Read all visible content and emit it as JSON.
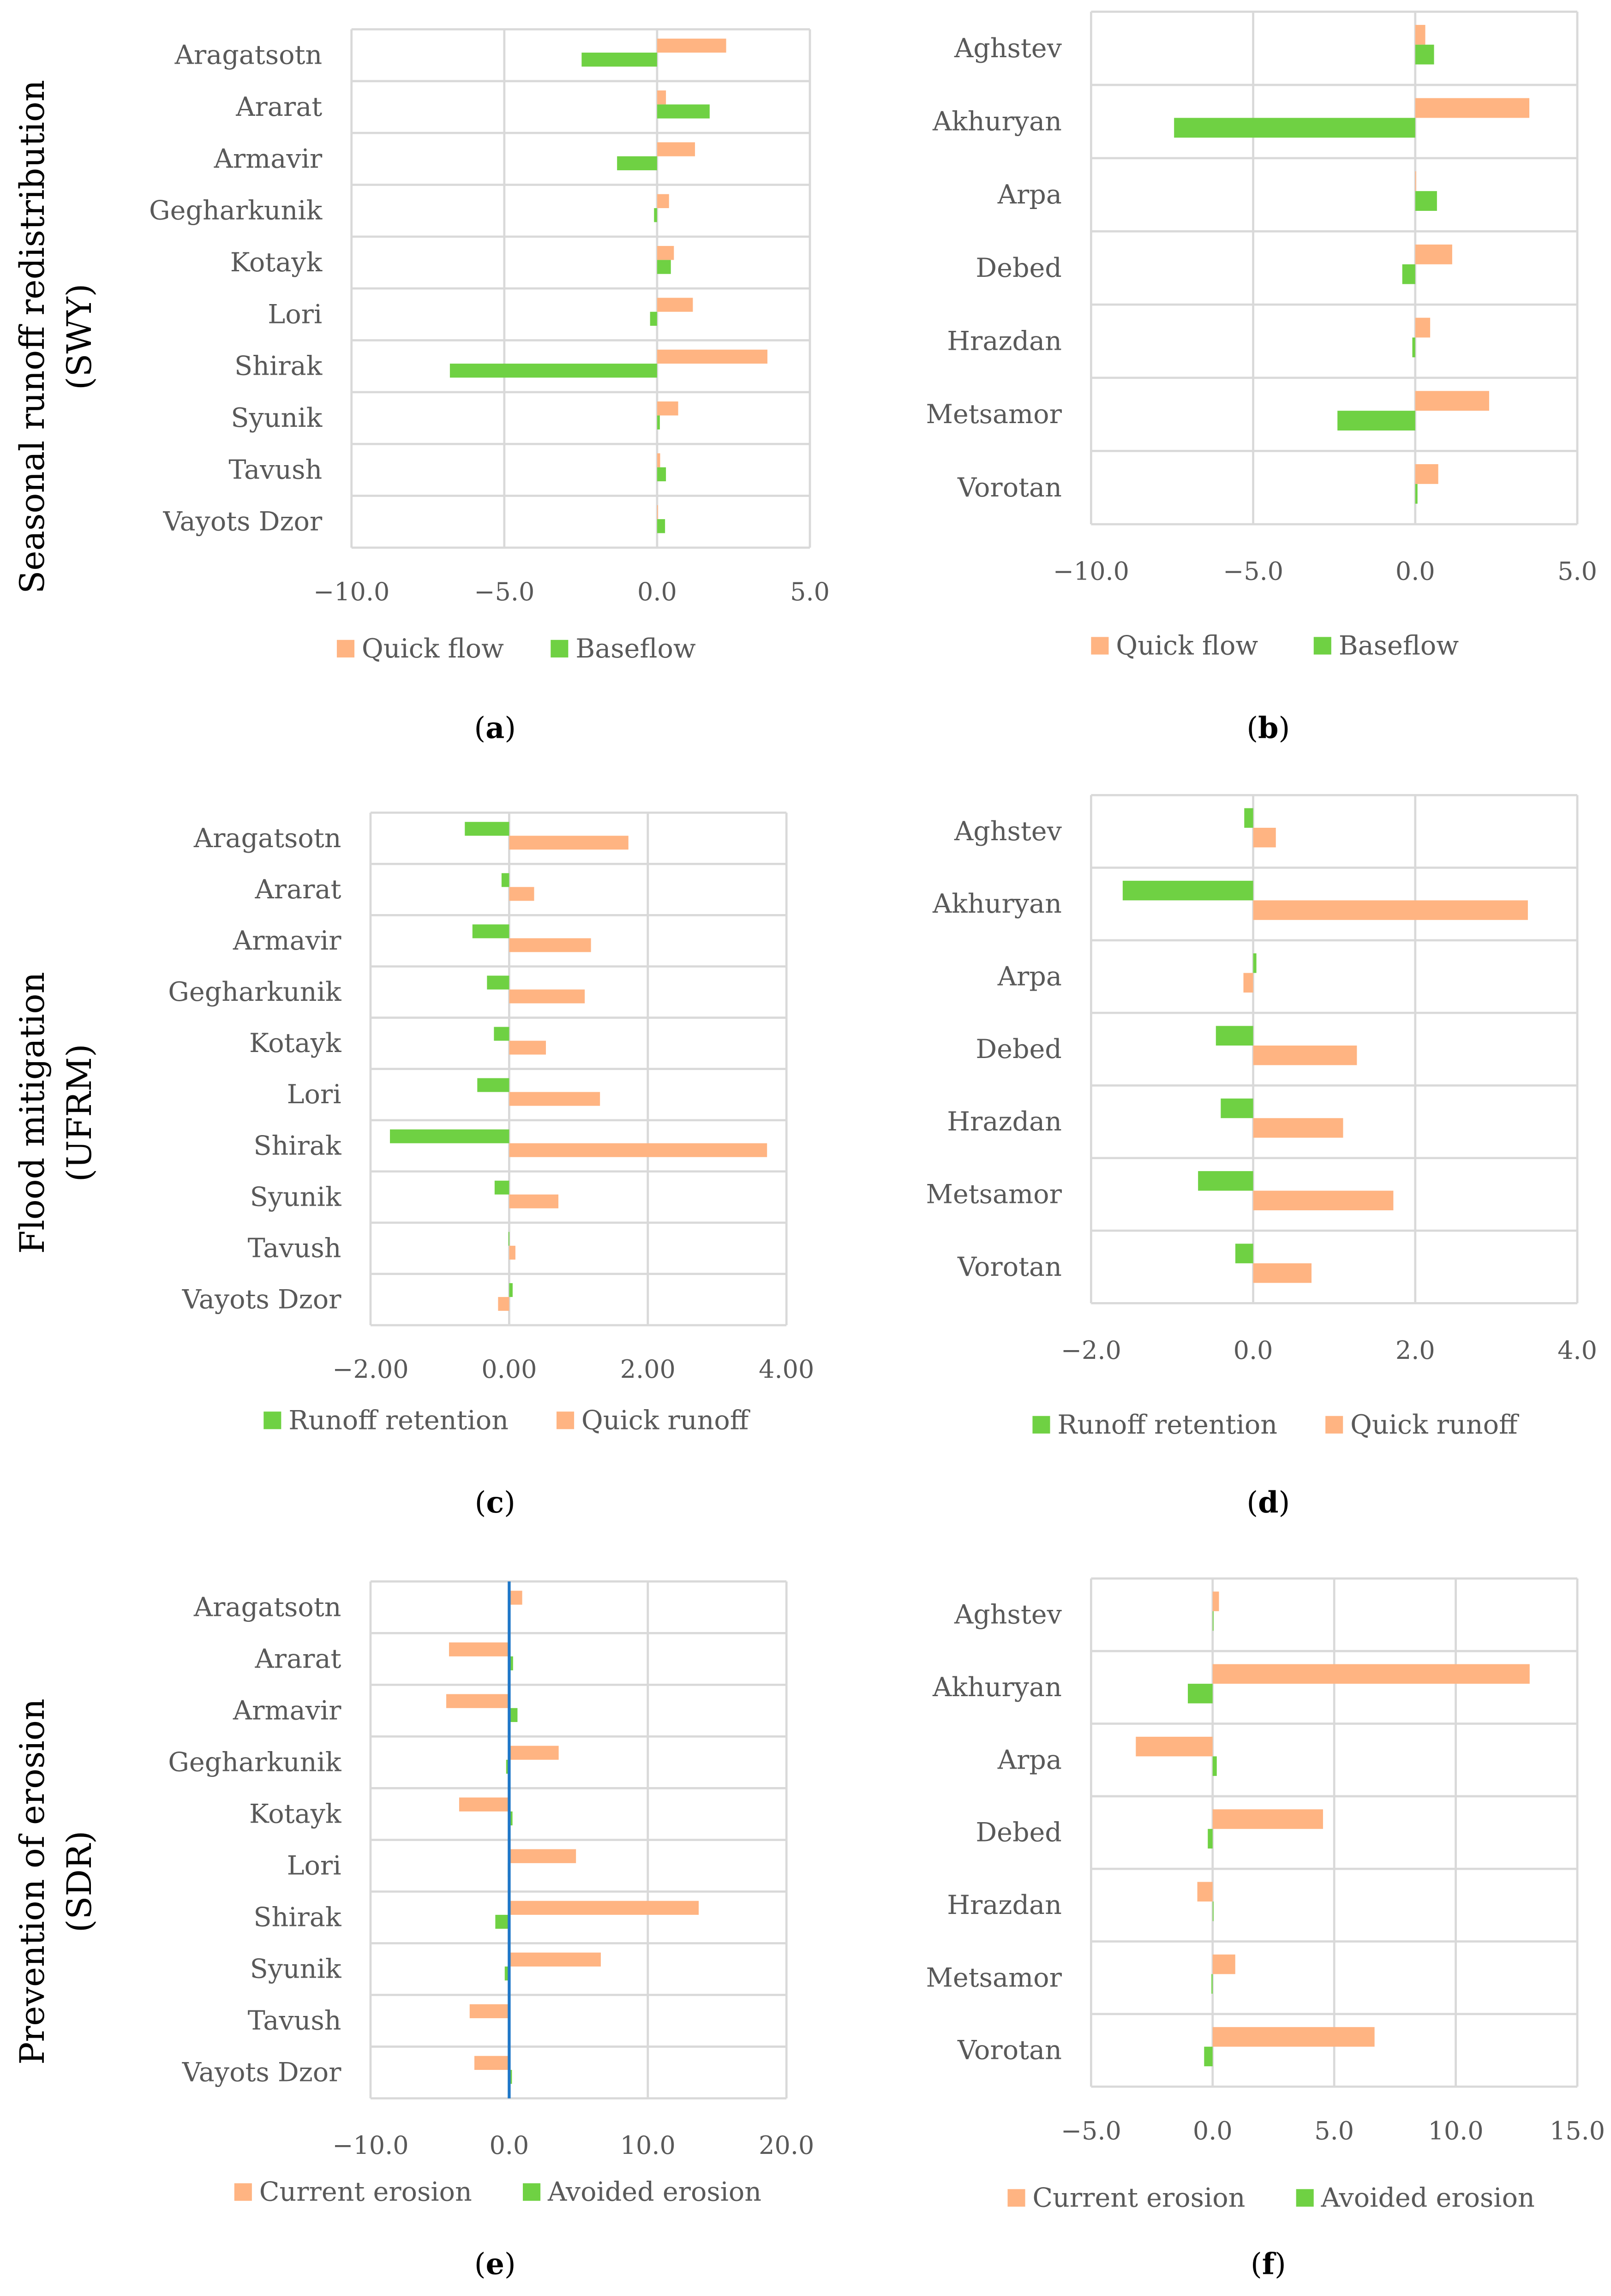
{
  "colors": {
    "quick": "#FFB482",
    "green": "#6FD143",
    "grid": "#D9D9D9",
    "zero_line": "#1F77C8"
  },
  "row_titles": [
    {
      "line1": "Seasonal runoff redistribution",
      "line2": "(SWY)"
    },
    {
      "line1": "Flood mitigation",
      "line2": "(UFRM)"
    },
    {
      "line1": "Prevention of erosion",
      "line2": "(SDR)"
    }
  ],
  "chart_data": [
    {
      "type": "bar",
      "orientation": "horizontal",
      "panel": "a",
      "categories": [
        "Aragatsotn",
        "Ararat",
        "Armavir",
        "Gegharkunik",
        "Kotayk",
        "Lori",
        "Shirak",
        "Syunik",
        "Tavush",
        "Vayots Dzor"
      ],
      "series": [
        {
          "name": "Quick flow",
          "color": "#FFB482",
          "values": [
            2.26,
            0.29,
            1.24,
            0.39,
            0.55,
            1.17,
            3.61,
            0.69,
            0.1,
            0.0
          ]
        },
        {
          "name": "Baseflow",
          "color": "#6FD143",
          "values": [
            -2.47,
            1.72,
            -1.31,
            -0.1,
            0.45,
            -0.23,
            -6.78,
            0.09,
            0.29,
            0.26
          ]
        }
      ],
      "xlim": [
        -10,
        5
      ],
      "ticks": [
        -10,
        -5,
        0,
        5
      ],
      "tick_labels": [
        "−10.0",
        "−5.0",
        "0.0",
        "5.0"
      ],
      "grid": true,
      "legend": "bottom",
      "caption": "(a)"
    },
    {
      "type": "bar",
      "orientation": "horizontal",
      "panel": "b",
      "categories": [
        "Aghstev",
        "Akhuryan",
        "Arpa",
        "Debed",
        "Hrazdan",
        "Metsamor",
        "Vorotan"
      ],
      "series": [
        {
          "name": "Quick flow",
          "color": "#FFB482",
          "values": [
            0.31,
            3.52,
            0.0,
            1.14,
            0.46,
            2.28,
            0.71
          ]
        },
        {
          "name": "Baseflow",
          "color": "#6FD143",
          "values": [
            0.58,
            -7.44,
            0.67,
            -0.4,
            -0.09,
            -2.4,
            0.07
          ]
        }
      ],
      "xlim": [
        -10,
        5
      ],
      "ticks": [
        -10,
        -5,
        0,
        5
      ],
      "tick_labels": [
        "−10.0",
        "−5.0",
        "0.0",
        "5.0"
      ],
      "grid": true,
      "legend": "bottom",
      "caption": "(b)"
    },
    {
      "type": "bar",
      "orientation": "horizontal",
      "panel": "c",
      "categories": [
        "Aragatsotn",
        "Ararat",
        "Armavir",
        "Gegharkunik",
        "Kotayk",
        "Lori",
        "Shirak",
        "Syunik",
        "Tavush",
        "Vayots Dzor"
      ],
      "series": [
        {
          "name": "Runoff retention",
          "color": "#6FD143",
          "values": [
            -0.64,
            -0.11,
            -0.53,
            -0.32,
            -0.22,
            -0.46,
            -1.72,
            -0.21,
            -0.01,
            0.05
          ]
        },
        {
          "name": "Quick runoff",
          "color": "#FFB482",
          "values": [
            1.72,
            0.36,
            1.18,
            1.09,
            0.53,
            1.31,
            3.72,
            0.71,
            0.09,
            -0.16
          ]
        }
      ],
      "xlim": [
        -2,
        4
      ],
      "ticks": [
        -2,
        0,
        2,
        4
      ],
      "tick_labels": [
        "−2.00",
        "0.00",
        "2.00",
        "4.00"
      ],
      "grid": true,
      "legend": "bottom",
      "caption": "(c)"
    },
    {
      "type": "bar",
      "orientation": "horizontal",
      "panel": "d",
      "categories": [
        "Aghstev",
        "Akhuryan",
        "Arpa",
        "Debed",
        "Hrazdan",
        "Metsamor",
        "Vorotan"
      ],
      "series": [
        {
          "name": "Runoff retention",
          "color": "#6FD143",
          "values": [
            -0.11,
            -1.61,
            0.04,
            -0.46,
            -0.4,
            -0.68,
            -0.22
          ]
        },
        {
          "name": "Quick runoff",
          "color": "#FFB482",
          "values": [
            0.28,
            3.39,
            -0.12,
            1.28,
            1.11,
            1.73,
            0.72
          ]
        }
      ],
      "xlim": [
        -2,
        4
      ],
      "ticks": [
        -2,
        0,
        2,
        4
      ],
      "tick_labels": [
        "−2.0",
        "0.0",
        "2.0",
        "4.0"
      ],
      "grid": true,
      "legend": "bottom",
      "caption": "(d)"
    },
    {
      "type": "bar",
      "orientation": "horizontal",
      "panel": "e",
      "categories": [
        "Aragatsotn",
        "Ararat",
        "Armavir",
        "Gegharkunik",
        "Kotayk",
        "Lori",
        "Shirak",
        "Syunik",
        "Tavush",
        "Vayots Dzor"
      ],
      "series": [
        {
          "name": "Current erosion",
          "color": "#FFB482",
          "values": [
            0.94,
            -4.34,
            -4.54,
            3.57,
            -3.61,
            4.82,
            13.67,
            6.61,
            -2.85,
            -2.51
          ]
        },
        {
          "name": "Avoided erosion",
          "color": "#6FD143",
          "values": [
            0.0,
            0.28,
            0.6,
            -0.22,
            0.24,
            -0.1,
            -1.0,
            -0.32,
            0.0,
            0.2
          ]
        }
      ],
      "xlim": [
        -10,
        20
      ],
      "ticks": [
        -10,
        0,
        10,
        20
      ],
      "tick_labels": [
        "−10.0",
        "0.0",
        "10.0",
        "20.0"
      ],
      "grid": true,
      "legend": "bottom",
      "zero_line": true,
      "caption": "(e)"
    },
    {
      "type": "bar",
      "orientation": "horizontal",
      "panel": "f",
      "categories": [
        "Aghstev",
        "Akhuryan",
        "Arpa",
        "Debed",
        "Hrazdan",
        "Metsamor",
        "Vorotan"
      ],
      "series": [
        {
          "name": "Current erosion",
          "color": "#FFB482",
          "values": [
            0.26,
            13.04,
            -3.16,
            4.54,
            -0.63,
            0.93,
            6.66
          ]
        },
        {
          "name": "Avoided erosion",
          "color": "#6FD143",
          "values": [
            0.0,
            -1.02,
            0.17,
            -0.2,
            0.0,
            -0.05,
            -0.35
          ]
        }
      ],
      "xlim": [
        -5,
        15
      ],
      "ticks": [
        -5,
        0,
        5,
        10,
        15
      ],
      "tick_labels": [
        "−5.0",
        "0.0",
        "5.0",
        "10.0",
        "15.0"
      ],
      "grid": true,
      "legend": "bottom",
      "caption": "(f)"
    }
  ]
}
